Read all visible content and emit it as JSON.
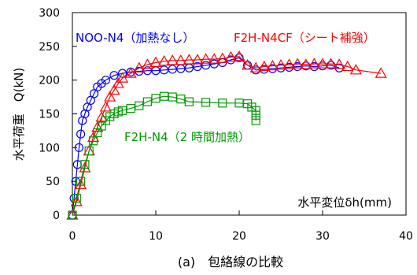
{
  "chart_data": {
    "type": "line",
    "caption": "(a)　包絡線の比較",
    "ylabel": "水平荷重　Q(kN)",
    "xlabel": "水平変位δh(mm)",
    "xlim": [
      0,
      40
    ],
    "ylim": [
      0,
      300
    ],
    "xticks": [
      "0",
      "10",
      "20",
      "30",
      "40"
    ],
    "yticks": [
      "0",
      "50",
      "100",
      "150",
      "200",
      "250",
      "300"
    ],
    "grid": false,
    "series": [
      {
        "name": "NOO-N4（加熱なし）",
        "color": "#0000ff",
        "marker": "circle",
        "points": [
          [
            0,
            0
          ],
          [
            0.2,
            25
          ],
          [
            0.4,
            50
          ],
          [
            0.6,
            75
          ],
          [
            0.8,
            100
          ],
          [
            1.0,
            120
          ],
          [
            1.2,
            140
          ],
          [
            1.5,
            150
          ],
          [
            1.8,
            160
          ],
          [
            2.2,
            170
          ],
          [
            2.6,
            180
          ],
          [
            3.0,
            190
          ],
          [
            3.5,
            195
          ],
          [
            4.0,
            200
          ],
          [
            5.0,
            207
          ],
          [
            6.0,
            210
          ],
          [
            7.0,
            212
          ],
          [
            8.0,
            213
          ],
          [
            9.0,
            214
          ],
          [
            10.0,
            214
          ],
          [
            11.0,
            215
          ],
          [
            12.0,
            216
          ],
          [
            13.0,
            217
          ],
          [
            14.0,
            218
          ],
          [
            15.0,
            220
          ],
          [
            16.0,
            222
          ],
          [
            17.0,
            224
          ],
          [
            18.0,
            226
          ],
          [
            19.0,
            230
          ],
          [
            20.0,
            233
          ],
          [
            21.0,
            222
          ],
          [
            22.0,
            215
          ],
          [
            23.0,
            216
          ],
          [
            24.0,
            217
          ],
          [
            25.0,
            218
          ],
          [
            26.0,
            219
          ],
          [
            27.0,
            220
          ],
          [
            28.0,
            221
          ],
          [
            29.0,
            220
          ],
          [
            30.0,
            221
          ],
          [
            31.0,
            222
          ],
          [
            32.0,
            218
          ]
        ]
      },
      {
        "name": "F2H-N4CF（シート補強）",
        "color": "#ff0000",
        "marker": "triangle",
        "points": [
          [
            0,
            0
          ],
          [
            0.5,
            20
          ],
          [
            1.0,
            45
          ],
          [
            1.5,
            70
          ],
          [
            2.0,
            95
          ],
          [
            2.5,
            115
          ],
          [
            3.0,
            130
          ],
          [
            3.5,
            145
          ],
          [
            4.0,
            160
          ],
          [
            4.5,
            175
          ],
          [
            5.0,
            185
          ],
          [
            5.5,
            195
          ],
          [
            6.0,
            203
          ],
          [
            7.0,
            210
          ],
          [
            8.0,
            218
          ],
          [
            9.0,
            223
          ],
          [
            10.0,
            226
          ],
          [
            11.0,
            228
          ],
          [
            12.0,
            229
          ],
          [
            13.0,
            229
          ],
          [
            14.0,
            230
          ],
          [
            15.0,
            230
          ],
          [
            16.0,
            231
          ],
          [
            17.0,
            231
          ],
          [
            18.0,
            232
          ],
          [
            19.0,
            234
          ],
          [
            20.0,
            235
          ],
          [
            21.0,
            222
          ],
          [
            22.0,
            218
          ],
          [
            23.0,
            220
          ],
          [
            24.0,
            221
          ],
          [
            25.0,
            222
          ],
          [
            26.0,
            223
          ],
          [
            27.0,
            224
          ],
          [
            28.0,
            223
          ],
          [
            29.0,
            224
          ],
          [
            30.0,
            224
          ],
          [
            31.0,
            224
          ],
          [
            32.0,
            223
          ],
          [
            33.0,
            220
          ],
          [
            34.0,
            215
          ],
          [
            37.0,
            210
          ]
        ]
      },
      {
        "name": "F2H-N4（2 時間加熱）",
        "color": "#009900",
        "marker": "square",
        "points": [
          [
            0,
            0
          ],
          [
            0.5,
            25
          ],
          [
            1.0,
            50
          ],
          [
            1.5,
            75
          ],
          [
            2.0,
            95
          ],
          [
            2.5,
            110
          ],
          [
            3.0,
            122
          ],
          [
            3.5,
            132
          ],
          [
            4.0,
            140
          ],
          [
            4.5,
            146
          ],
          [
            5.0,
            150
          ],
          [
            5.5,
            153
          ],
          [
            6.0,
            155
          ],
          [
            7.0,
            158
          ],
          [
            8.0,
            162
          ],
          [
            9.0,
            168
          ],
          [
            10.0,
            173
          ],
          [
            11.0,
            176
          ],
          [
            12.0,
            175
          ],
          [
            13.0,
            172
          ],
          [
            14.0,
            168
          ],
          [
            16.0,
            167
          ],
          [
            18.0,
            166
          ],
          [
            20.0,
            166
          ],
          [
            21.0,
            165
          ],
          [
            21.5,
            160
          ],
          [
            22.0,
            155
          ],
          [
            22.0,
            148
          ],
          [
            22.0,
            140
          ]
        ]
      }
    ]
  }
}
